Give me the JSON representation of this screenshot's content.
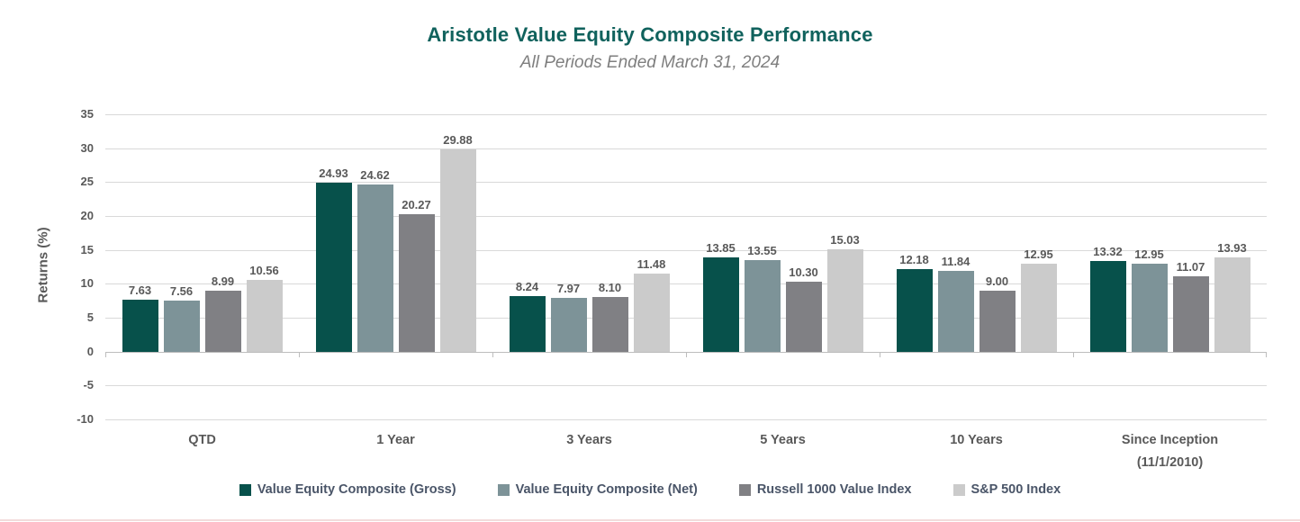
{
  "title": "Aristotle Value Equity Composite Performance",
  "subtitle": "All Periods Ended March 31, 2024",
  "chart_data": {
    "type": "bar",
    "categories": [
      "QTD",
      "1 Year",
      "3 Years",
      "5 Years",
      "10 Years",
      "Since Inception\n(11/1/2010)"
    ],
    "series": [
      {
        "name": "Value Equity Composite (Gross)",
        "color": "#07514b",
        "values": [
          7.63,
          24.93,
          8.24,
          13.85,
          12.18,
          13.32
        ]
      },
      {
        "name": "Value Equity Composite (Net)",
        "color": "#7d9398",
        "values": [
          7.56,
          24.62,
          7.97,
          13.55,
          11.84,
          12.95
        ]
      },
      {
        "name": "Russell 1000 Value Index",
        "color": "#808084",
        "values": [
          8.99,
          20.27,
          8.1,
          10.3,
          9.0,
          11.07
        ]
      },
      {
        "name": "S&P 500 Index",
        "color": "#cbcbcb",
        "values": [
          10.56,
          29.88,
          11.48,
          15.03,
          12.95,
          13.93
        ]
      }
    ],
    "title": "Aristotle Value Equity Composite Performance",
    "subtitle": "All Periods Ended March 31, 2024",
    "xlabel": "",
    "ylabel": "Returns (%)",
    "ylim": [
      -10,
      35
    ],
    "ytick_step": 5,
    "grid": true,
    "legend_position": "bottom",
    "value_label_decimals": 2,
    "colors": {
      "title": "#10625d",
      "subtitle": "#7f7f7f",
      "axis_text": "#595959",
      "gridline": "#d9d9d9",
      "zero_axis": "#bdbdbd",
      "bottom_line": "#f2dcdb"
    }
  }
}
